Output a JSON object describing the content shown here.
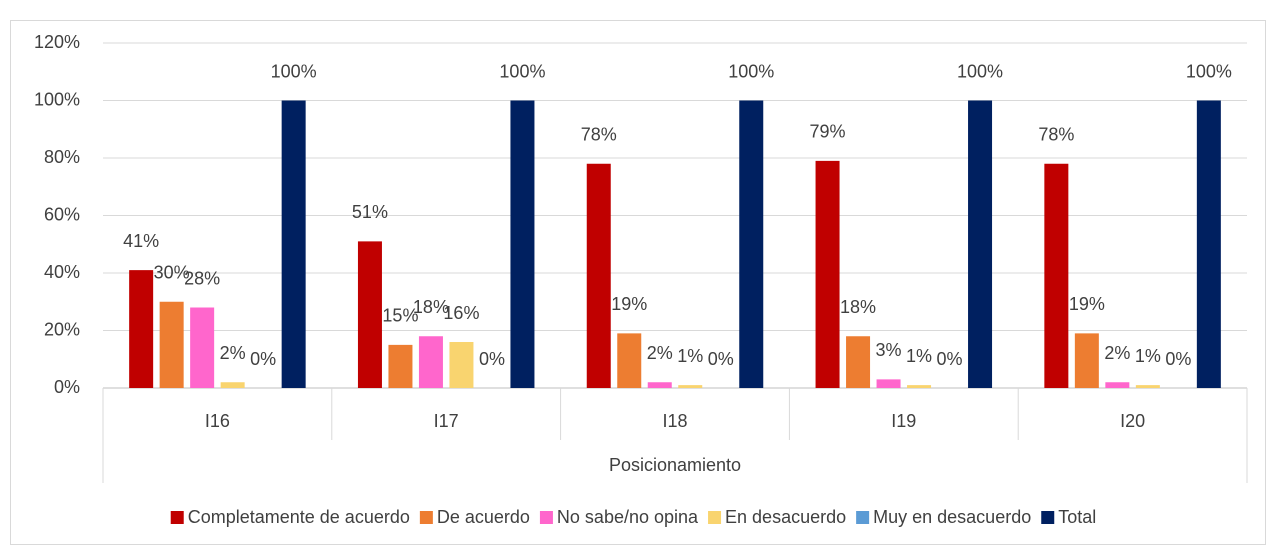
{
  "chart_data": {
    "type": "bar",
    "categories": [
      "I16",
      "I17",
      "I18",
      "I19",
      "I20"
    ],
    "x_label": "Posicionamiento",
    "ylim": [
      0,
      120
    ],
    "yticks": [
      {
        "value": 0,
        "label": "0%"
      },
      {
        "value": 20,
        "label": "20%"
      },
      {
        "value": 40,
        "label": "40%"
      },
      {
        "value": 60,
        "label": "60%"
      },
      {
        "value": 80,
        "label": "80%"
      },
      {
        "value": 100,
        "label": "100%"
      },
      {
        "value": 120,
        "label": "120%"
      }
    ],
    "grid": true,
    "legend": "bottom",
    "series": [
      {
        "name": "Completamente de acuerdo",
        "color": "#c00000",
        "values": [
          41,
          51,
          78,
          79,
          78
        ],
        "value_labels": [
          "41%",
          "51%",
          "78%",
          "79%",
          "78%"
        ]
      },
      {
        "name": "De acuerdo",
        "color": "#ed7d31",
        "values": [
          30,
          15,
          19,
          18,
          19
        ],
        "value_labels": [
          "30%",
          "15%",
          "19%",
          "18%",
          "19%"
        ]
      },
      {
        "name": "No sabe/no opina",
        "color": "#ff66cc",
        "values": [
          28,
          18,
          2,
          3,
          2
        ],
        "value_labels": [
          "28%",
          "18%",
          "2%",
          "3%",
          "2%"
        ]
      },
      {
        "name": "En desacuerdo",
        "color": "#f9d46f",
        "values": [
          2,
          16,
          1,
          1,
          1
        ],
        "value_labels": [
          "2%",
          "16%",
          "1%",
          "1%",
          "1%"
        ]
      },
      {
        "name": "Muy en desacuerdo",
        "color": "#5b9bd5",
        "values": [
          0,
          0,
          0,
          0,
          0
        ],
        "value_labels": [
          "0%",
          "0%",
          "0%",
          "0%",
          "0%"
        ]
      },
      {
        "name": "Total",
        "color": "#002060",
        "values": [
          100,
          100,
          100,
          100,
          100
        ],
        "value_labels": [
          "100%",
          "100%",
          "100%",
          "100%",
          "100%"
        ]
      }
    ]
  }
}
